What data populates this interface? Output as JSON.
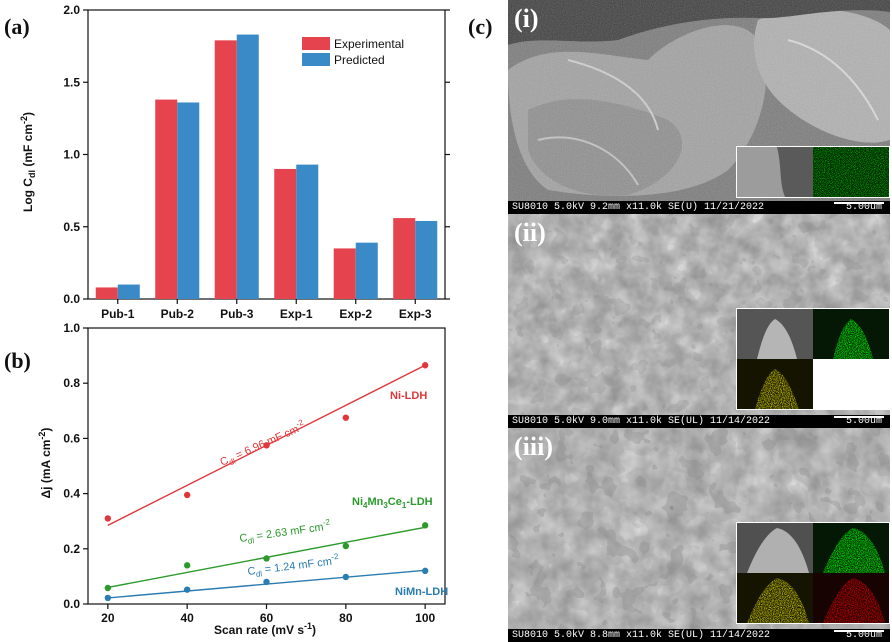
{
  "panel_labels": {
    "a": "(a)",
    "b": "(b)",
    "c": "(c)"
  },
  "chart_data": [
    {
      "type": "bar",
      "categories": [
        "Pub-1",
        "Pub-2",
        "Pub-3",
        "Exp-1",
        "Exp-2",
        "Exp-3"
      ],
      "series": [
        {
          "name": "Experimental",
          "values": [
            0.08,
            1.38,
            1.79,
            0.9,
            0.35,
            0.56
          ],
          "color": "#e5444f"
        },
        {
          "name": "Predicted",
          "values": [
            0.1,
            1.36,
            1.83,
            0.93,
            0.39,
            0.54
          ],
          "color": "#3a8ac7"
        }
      ],
      "title": "",
      "xlabel": "",
      "ylabel": "Log C",
      "ylabel_sub": "dl",
      "ylabel_unit": " (mF cm",
      "ylabel_sup": "-2",
      "ylabel_close": ")",
      "ylim": [
        0,
        2.0
      ],
      "yticks": [
        "0.0",
        "0.5",
        "1.0",
        "1.5",
        "2.0"
      ],
      "grid": false,
      "legend": "top-right"
    },
    {
      "type": "scatter",
      "x": [
        20,
        40,
        60,
        80,
        100
      ],
      "series": [
        {
          "name": "Ni-LDH",
          "values": [
            0.31,
            0.395,
            0.575,
            0.675,
            0.865
          ],
          "fit": [
            0.285,
            0.865
          ],
          "color": "#e0383a",
          "annotation": {
            "pre": "C",
            "sub": "dl",
            "mid": " = 6.96 mF cm",
            "sup": "-2"
          }
        },
        {
          "name_parts": {
            "a": "Ni",
            "a_sub": "4",
            "b": "Mn",
            "b_sub": "3",
            "c": "Ce",
            "c_sub": "1",
            "d": "-LDH"
          },
          "values": [
            0.058,
            0.14,
            0.165,
            0.21,
            0.285
          ],
          "fit": [
            0.06,
            0.278
          ],
          "color": "#2b9a2b",
          "annotation": {
            "pre": "C",
            "sub": "dl",
            "mid": " = 2.63 mF cm",
            "sup": "-2"
          }
        },
        {
          "name": "NiMn-LDH",
          "values": [
            0.022,
            0.052,
            0.08,
            0.098,
            0.12
          ],
          "fit": [
            0.022,
            0.122
          ],
          "color": "#2b7cb0",
          "annotation": {
            "pre": "C",
            "sub": "dl",
            "mid": " = 1.24 mF cm",
            "sup": "-2"
          }
        }
      ],
      "title": "",
      "xlabel": "Scan rate (mV s",
      "xlabel_sup": "-1",
      "xlabel_close": ")",
      "ylabel": "Δj (mA cm",
      "ylabel_sup": "-2",
      "ylabel_close": ")",
      "xlim": [
        15,
        105
      ],
      "ylim": [
        0,
        1.0
      ],
      "xticks": [
        "20",
        "40",
        "60",
        "80",
        "100"
      ],
      "yticks": [
        "0.0",
        "0.2",
        "0.4",
        "0.6",
        "0.8",
        "1.0"
      ],
      "grid": false
    }
  ],
  "sem_panels": [
    {
      "label": "(i)",
      "info": "SU8010 5.0kV 9.2mm x11.0k SE(U) 11/21/2022",
      "scale": "5.00um"
    },
    {
      "label": "(ii)",
      "info": "SU8010 5.0kV 9.0mm x11.0k SE(UL) 11/14/2022",
      "scale": "5.00um"
    },
    {
      "label": "(iii)",
      "info": "SU8010 5.0kV 8.8mm x11.0k SE(UL) 11/14/2022",
      "scale": "5.00um"
    }
  ]
}
